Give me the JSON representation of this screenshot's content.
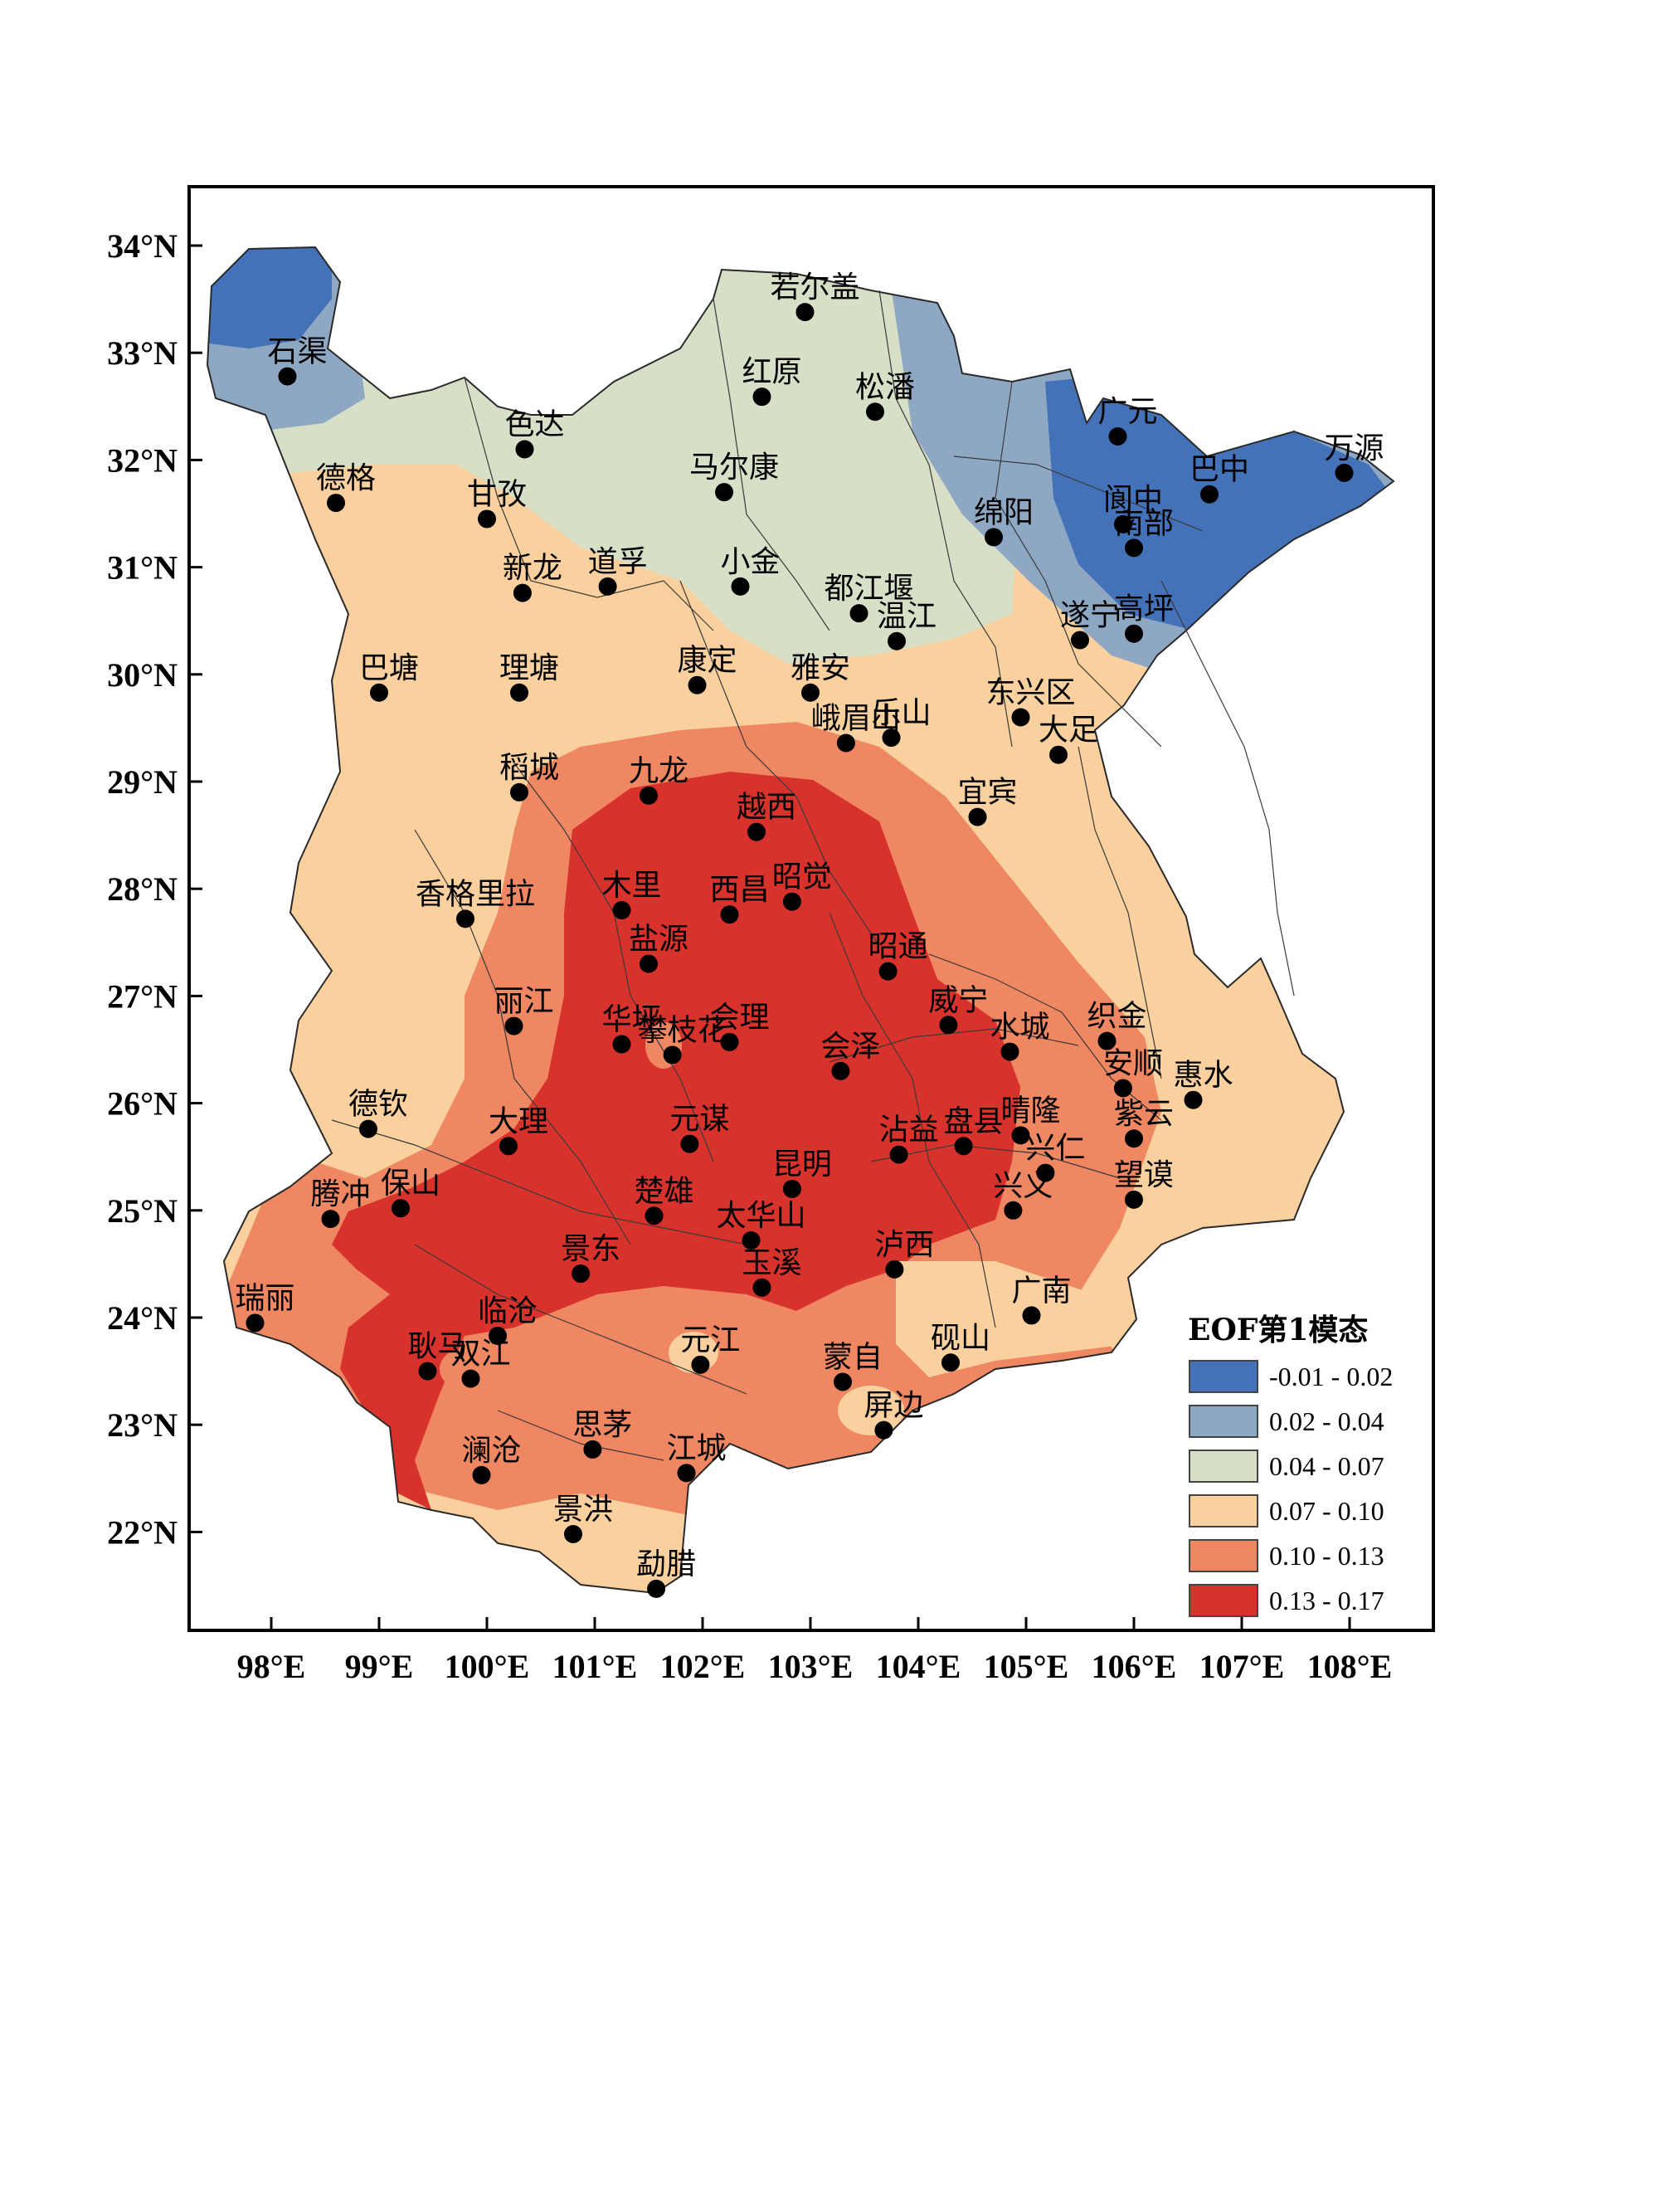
{
  "map": {
    "lat_ticks": [
      {
        "lat": 34,
        "label": "34°N"
      },
      {
        "lat": 33,
        "label": "33°N"
      },
      {
        "lat": 32,
        "label": "32°N"
      },
      {
        "lat": 31,
        "label": "31°N"
      },
      {
        "lat": 30,
        "label": "30°N"
      },
      {
        "lat": 29,
        "label": "29°N"
      },
      {
        "lat": 28,
        "label": "28°N"
      },
      {
        "lat": 27,
        "label": "27°N"
      },
      {
        "lat": 26,
        "label": "26°N"
      },
      {
        "lat": 25,
        "label": "25°N"
      },
      {
        "lat": 24,
        "label": "24°N"
      },
      {
        "lat": 23,
        "label": "23°N"
      },
      {
        "lat": 22,
        "label": "22°N"
      }
    ],
    "lon_ticks": [
      {
        "lon": 98,
        "label": "98°E"
      },
      {
        "lon": 99,
        "label": "99°E"
      },
      {
        "lon": 100,
        "label": "100°E"
      },
      {
        "lon": 101,
        "label": "101°E"
      },
      {
        "lon": 102,
        "label": "102°E"
      },
      {
        "lon": 103,
        "label": "103°E"
      },
      {
        "lon": 104,
        "label": "104°E"
      },
      {
        "lon": 105,
        "label": "105°E"
      },
      {
        "lon": 106,
        "label": "106°E"
      },
      {
        "lon": 107,
        "label": "107°E"
      },
      {
        "lon": 108,
        "label": "108°E"
      }
    ],
    "legend": {
      "title": "EOF第1模态",
      "items": [
        {
          "label": "-0.01 - 0.02",
          "color": "#4472b8"
        },
        {
          "label": "0.02 - 0.04",
          "color": "#8ea8c4"
        },
        {
          "label": "0.04 - 0.07",
          "color": "#d7e0c6"
        },
        {
          "label": "0.07 - 0.10",
          "color": "#f9d09e"
        },
        {
          "label": "0.10 - 0.13",
          "color": "#ee8762"
        },
        {
          "label": "0.13 - 0.17",
          "color": "#d8322c"
        }
      ]
    },
    "stations": [
      {
        "name": "石渠",
        "lon": 98.15,
        "lat": 32.78
      },
      {
        "name": "若尔盖",
        "lon": 102.95,
        "lat": 33.38
      },
      {
        "name": "红原",
        "lon": 102.55,
        "lat": 32.59
      },
      {
        "name": "松潘",
        "lon": 103.6,
        "lat": 32.45
      },
      {
        "name": "色达",
        "lon": 100.35,
        "lat": 32.1
      },
      {
        "name": "德格",
        "lon": 98.6,
        "lat": 31.6
      },
      {
        "name": "甘孜",
        "lon": 100.0,
        "lat": 31.45
      },
      {
        "name": "马尔康",
        "lon": 102.2,
        "lat": 31.7
      },
      {
        "name": "广元",
        "lon": 105.85,
        "lat": 32.22
      },
      {
        "name": "万源",
        "lon": 107.95,
        "lat": 31.88
      },
      {
        "name": "巴中",
        "lon": 106.7,
        "lat": 31.68
      },
      {
        "name": "阆中",
        "lon": 105.9,
        "lat": 31.4
      },
      {
        "name": "南部",
        "lon": 106.0,
        "lat": 31.18
      },
      {
        "name": "绵阳",
        "lon": 104.7,
        "lat": 31.28
      },
      {
        "name": "新龙",
        "lon": 100.33,
        "lat": 30.76
      },
      {
        "name": "道孚",
        "lon": 101.12,
        "lat": 30.82
      },
      {
        "name": "小金",
        "lon": 102.35,
        "lat": 30.82
      },
      {
        "name": "都江堰",
        "lon": 103.45,
        "lat": 30.57
      },
      {
        "name": "温江",
        "lon": 103.8,
        "lat": 30.31
      },
      {
        "name": "遂宁",
        "lon": 105.5,
        "lat": 30.32
      },
      {
        "name": "高坪",
        "lon": 106.0,
        "lat": 30.38
      },
      {
        "name": "巴塘",
        "lon": 99.0,
        "lat": 29.83
      },
      {
        "name": "理塘",
        "lon": 100.3,
        "lat": 29.83
      },
      {
        "name": "康定",
        "lon": 101.95,
        "lat": 29.9
      },
      {
        "name": "雅安",
        "lon": 103.0,
        "lat": 29.83
      },
      {
        "name": "东兴区",
        "lon": 104.95,
        "lat": 29.6
      },
      {
        "name": "峨眉山",
        "lon": 103.33,
        "lat": 29.36
      },
      {
        "name": "乐山",
        "lon": 103.75,
        "lat": 29.41
      },
      {
        "name": "大足",
        "lon": 105.3,
        "lat": 29.25
      },
      {
        "name": "稻城",
        "lon": 100.3,
        "lat": 28.9
      },
      {
        "name": "九龙",
        "lon": 101.5,
        "lat": 28.87
      },
      {
        "name": "越西",
        "lon": 102.5,
        "lat": 28.53
      },
      {
        "name": "宜宾",
        "lon": 104.55,
        "lat": 28.67
      },
      {
        "name": "香格里拉",
        "lon": 99.8,
        "lat": 27.72
      },
      {
        "name": "木里",
        "lon": 101.25,
        "lat": 27.8
      },
      {
        "name": "西昌",
        "lon": 102.25,
        "lat": 27.76
      },
      {
        "name": "昭觉",
        "lon": 102.83,
        "lat": 27.88
      },
      {
        "name": "盐源",
        "lon": 101.5,
        "lat": 27.3
      },
      {
        "name": "昭通",
        "lon": 103.72,
        "lat": 27.23
      },
      {
        "name": "丽江",
        "lon": 100.25,
        "lat": 26.72
      },
      {
        "name": "华坪",
        "lon": 101.25,
        "lat": 26.55
      },
      {
        "name": "会理",
        "lon": 102.25,
        "lat": 26.57
      },
      {
        "name": "攀枝花",
        "lon": 101.72,
        "lat": 26.45
      },
      {
        "name": "会泽",
        "lon": 103.28,
        "lat": 26.3
      },
      {
        "name": "威宁",
        "lon": 104.28,
        "lat": 26.73
      },
      {
        "name": "水城",
        "lon": 104.85,
        "lat": 26.48
      },
      {
        "name": "织金",
        "lon": 105.75,
        "lat": 26.58
      },
      {
        "name": "安顺",
        "lon": 105.9,
        "lat": 26.14
      },
      {
        "name": "惠水",
        "lon": 106.55,
        "lat": 26.03
      },
      {
        "name": "德钦",
        "lon": 98.9,
        "lat": 25.76
      },
      {
        "name": "大理",
        "lon": 100.2,
        "lat": 25.6
      },
      {
        "name": "元谋",
        "lon": 101.88,
        "lat": 25.62
      },
      {
        "name": "沾益",
        "lon": 103.82,
        "lat": 25.52
      },
      {
        "name": "盘县",
        "lon": 104.42,
        "lat": 25.6
      },
      {
        "name": "晴隆",
        "lon": 104.95,
        "lat": 25.7
      },
      {
        "name": "紫云",
        "lon": 106.0,
        "lat": 25.67
      },
      {
        "name": "兴仁",
        "lon": 105.18,
        "lat": 25.35
      },
      {
        "name": "望谟",
        "lon": 106.0,
        "lat": 25.1
      },
      {
        "name": "昆明",
        "lon": 102.83,
        "lat": 25.2
      },
      {
        "name": "楚雄",
        "lon": 101.55,
        "lat": 24.95
      },
      {
        "name": "腾冲",
        "lon": 98.55,
        "lat": 24.92
      },
      {
        "name": "保山",
        "lon": 99.2,
        "lat": 25.02
      },
      {
        "name": "兴义",
        "lon": 104.88,
        "lat": 25.0
      },
      {
        "name": "太华山",
        "lon": 102.45,
        "lat": 24.72
      },
      {
        "name": "泸西",
        "lon": 103.78,
        "lat": 24.45
      },
      {
        "name": "景东",
        "lon": 100.87,
        "lat": 24.41
      },
      {
        "name": "玉溪",
        "lon": 102.55,
        "lat": 24.28
      },
      {
        "name": "广南",
        "lon": 105.05,
        "lat": 24.02
      },
      {
        "name": "瑞丽",
        "lon": 97.85,
        "lat": 23.95
      },
      {
        "name": "临沧",
        "lon": 100.1,
        "lat": 23.83
      },
      {
        "name": "耿马",
        "lon": 99.45,
        "lat": 23.5
      },
      {
        "name": "双江",
        "lon": 99.85,
        "lat": 23.43
      },
      {
        "name": "元江",
        "lon": 101.98,
        "lat": 23.56
      },
      {
        "name": "蒙自",
        "lon": 103.3,
        "lat": 23.4
      },
      {
        "name": "砚山",
        "lon": 104.3,
        "lat": 23.58
      },
      {
        "name": "屏边",
        "lon": 103.68,
        "lat": 22.95
      },
      {
        "name": "思茅",
        "lon": 100.98,
        "lat": 22.77
      },
      {
        "name": "澜沧",
        "lon": 99.95,
        "lat": 22.53
      },
      {
        "name": "江城",
        "lon": 101.85,
        "lat": 22.55
      },
      {
        "name": "景洪",
        "lon": 100.8,
        "lat": 21.98
      },
      {
        "name": "勐腊",
        "lon": 101.57,
        "lat": 21.47
      }
    ]
  }
}
